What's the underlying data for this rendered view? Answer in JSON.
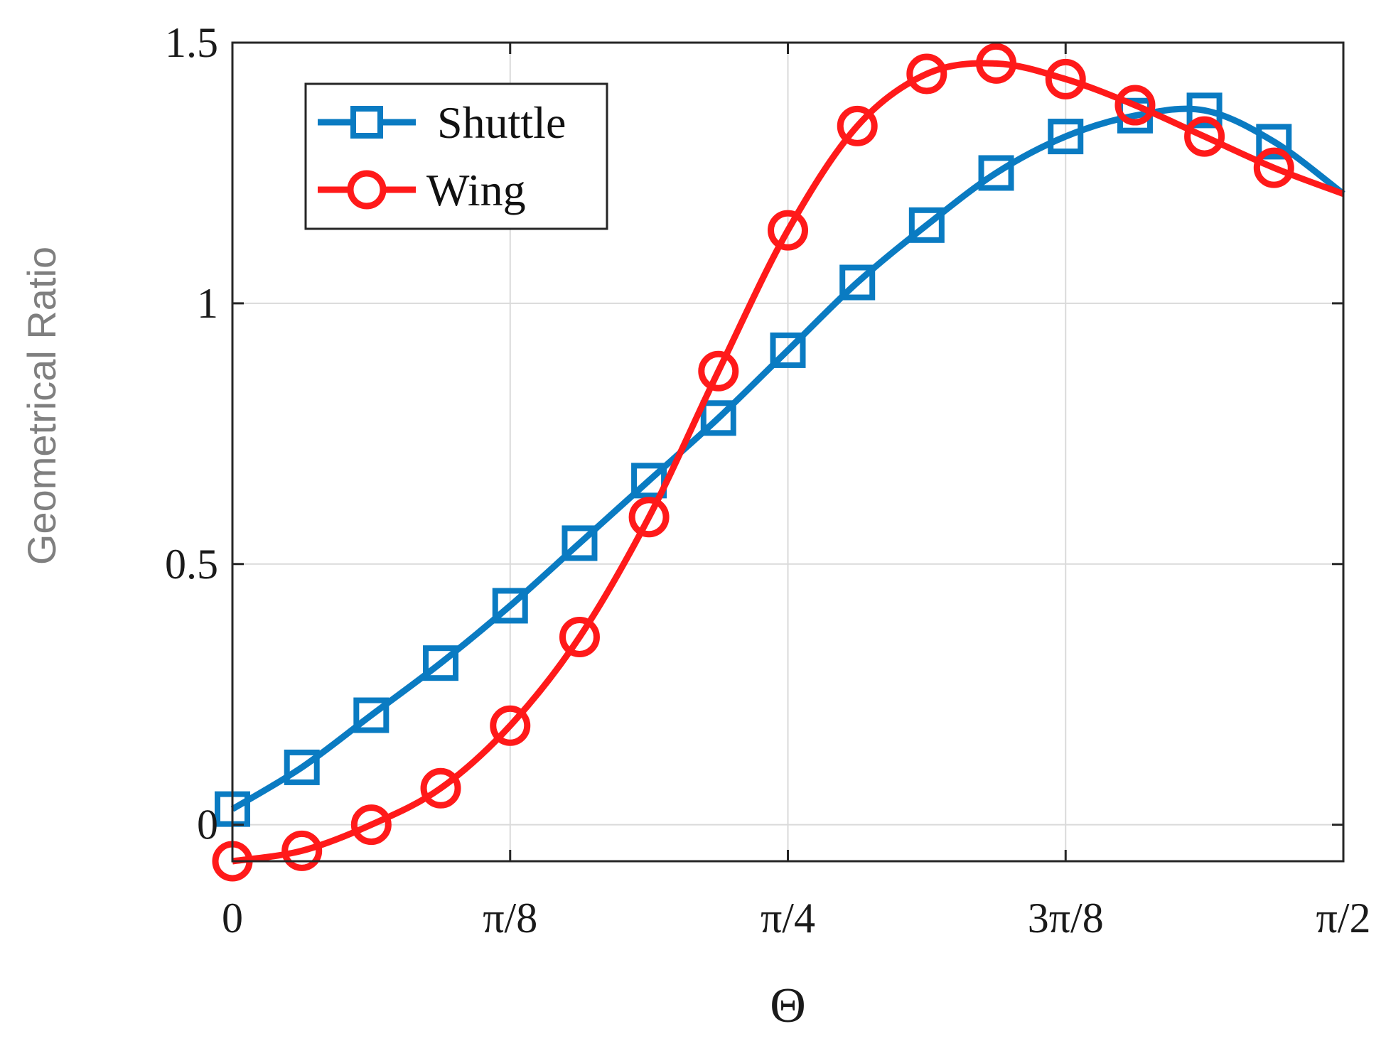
{
  "chart_data": {
    "type": "line",
    "xlabel": "Θ",
    "ylabel": "Geometrical Ratio",
    "xlim": [
      0,
      1.5708
    ],
    "ylim": [
      -0.07,
      1.5
    ],
    "x_ticks": [
      {
        "value": 0,
        "label": "0"
      },
      {
        "value": 0.3927,
        "label": "π/8"
      },
      {
        "value": 0.7854,
        "label": "π/4"
      },
      {
        "value": 1.1781,
        "label": "3π/8"
      },
      {
        "value": 1.5708,
        "label": "π/2"
      }
    ],
    "y_ticks": [
      {
        "value": 0,
        "label": "0"
      },
      {
        "value": 0.5,
        "label": "0.5"
      },
      {
        "value": 1,
        "label": "1"
      },
      {
        "value": 1.5,
        "label": "1.5"
      }
    ],
    "grid": true,
    "legend_position": "top-left",
    "series": [
      {
        "name": "Shuttle",
        "color": "#0a7bc2",
        "marker": "square",
        "x": [
          0.0,
          0.0982,
          0.1963,
          0.2945,
          0.3927,
          0.4909,
          0.589,
          0.6872,
          0.7854,
          0.8836,
          0.9817,
          1.0799,
          1.1781,
          1.2763,
          1.3744,
          1.4726,
          1.5708
        ],
        "y": [
          0.03,
          0.11,
          0.21,
          0.31,
          0.42,
          0.54,
          0.66,
          0.78,
          0.91,
          1.04,
          1.15,
          1.25,
          1.32,
          1.36,
          1.37,
          1.31,
          1.21
        ]
      },
      {
        "name": "Wing",
        "color": "#ff1a1a",
        "marker": "circle",
        "x": [
          0.0,
          0.0982,
          0.1963,
          0.2945,
          0.3927,
          0.4909,
          0.589,
          0.6872,
          0.7854,
          0.8836,
          0.9817,
          1.0799,
          1.1781,
          1.2763,
          1.3744,
          1.4726,
          1.5708
        ],
        "y": [
          -0.07,
          -0.05,
          0.0,
          0.07,
          0.19,
          0.36,
          0.59,
          0.87,
          1.14,
          1.34,
          1.44,
          1.46,
          1.43,
          1.38,
          1.32,
          1.26,
          1.21
        ]
      }
    ]
  }
}
